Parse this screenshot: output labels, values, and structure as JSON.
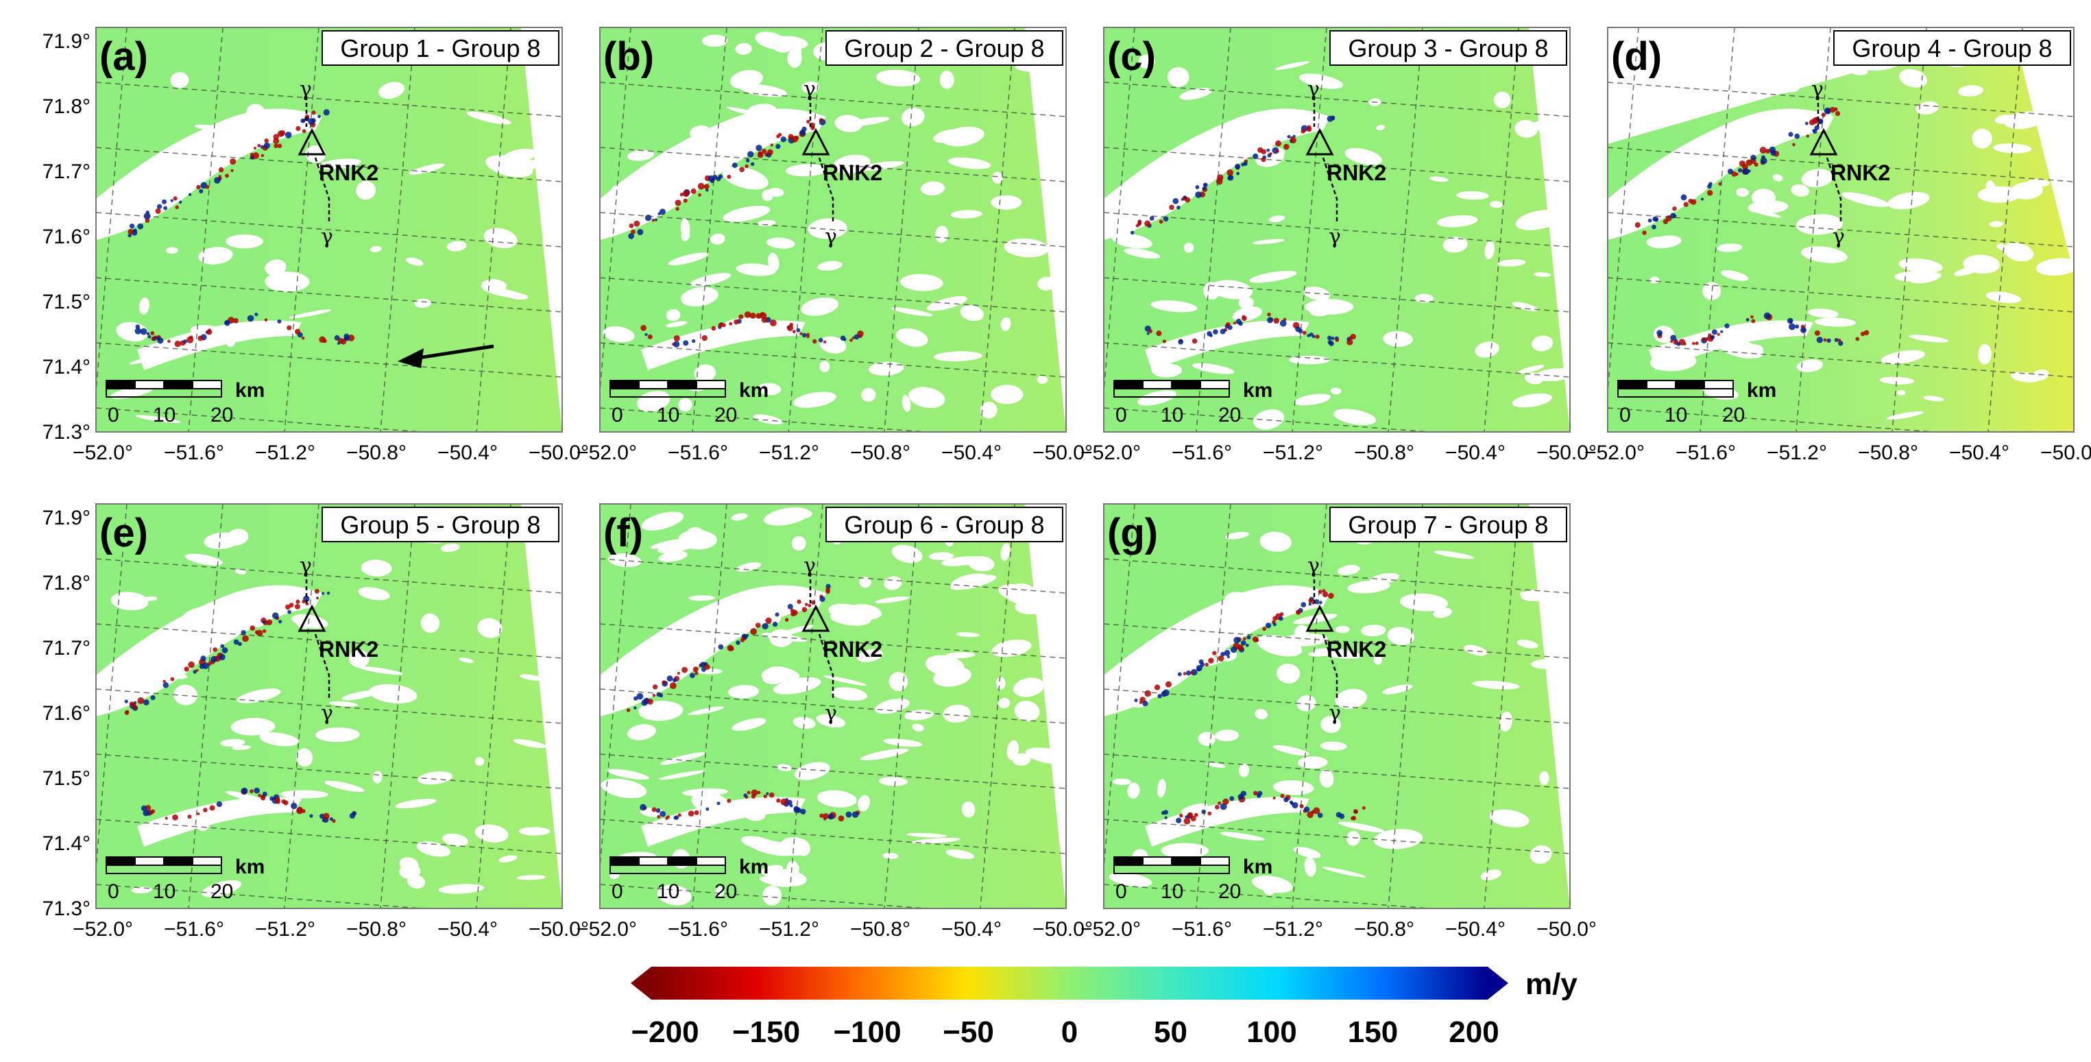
{
  "panels": [
    {
      "letter": "(a)",
      "label": "Group 1 - Group 8",
      "station": "RNK2",
      "flow_arrow": true
    },
    {
      "letter": "(b)",
      "label": "Group 2 - Group 8",
      "station": "RNK2",
      "flow_arrow": false
    },
    {
      "letter": "(c)",
      "label": "Group 3 - Group 8",
      "station": "RNK2",
      "flow_arrow": false
    },
    {
      "letter": "(d)",
      "label": "Group 4 - Group 8",
      "station": "RNK2",
      "flow_arrow": false
    },
    {
      "letter": "(e)",
      "label": "Group 5 - Group 8",
      "station": "RNK2",
      "flow_arrow": false
    },
    {
      "letter": "(f)",
      "label": "Group 6 - Group 8",
      "station": "RNK2",
      "flow_arrow": false
    },
    {
      "letter": "(g)",
      "label": "Group 7 - Group 8",
      "station": "RNK2",
      "flow_arrow": false
    }
  ],
  "lat_ticks": [
    "71.9°",
    "71.8°",
    "71.7°",
    "71.6°",
    "71.5°",
    "71.4°",
    "71.3°"
  ],
  "lon_ticks": [
    "−52.0°",
    "−51.6°",
    "−51.2°",
    "−50.8°",
    "−50.4°",
    "−50.0°"
  ],
  "scale_bar": {
    "labels": [
      "0",
      "10",
      "20"
    ],
    "unit": "km"
  },
  "colorbar": {
    "unit": "m/y",
    "min": -200,
    "max": 200,
    "ticks": [
      "−200",
      "−150",
      "−100",
      "−50",
      "0",
      "50",
      "100",
      "150",
      "200"
    ],
    "colors": [
      "#7f0000",
      "#e00000",
      "#ff7000",
      "#ffe000",
      "#90f070",
      "#40e8c0",
      "#00d8ff",
      "#0070ff",
      "#000090"
    ]
  },
  "colors": {
    "background_velocity": "#8eef7c",
    "ice_free": "#ffffff",
    "fast_negative": "#b00000",
    "fast_positive": "#002090"
  }
}
